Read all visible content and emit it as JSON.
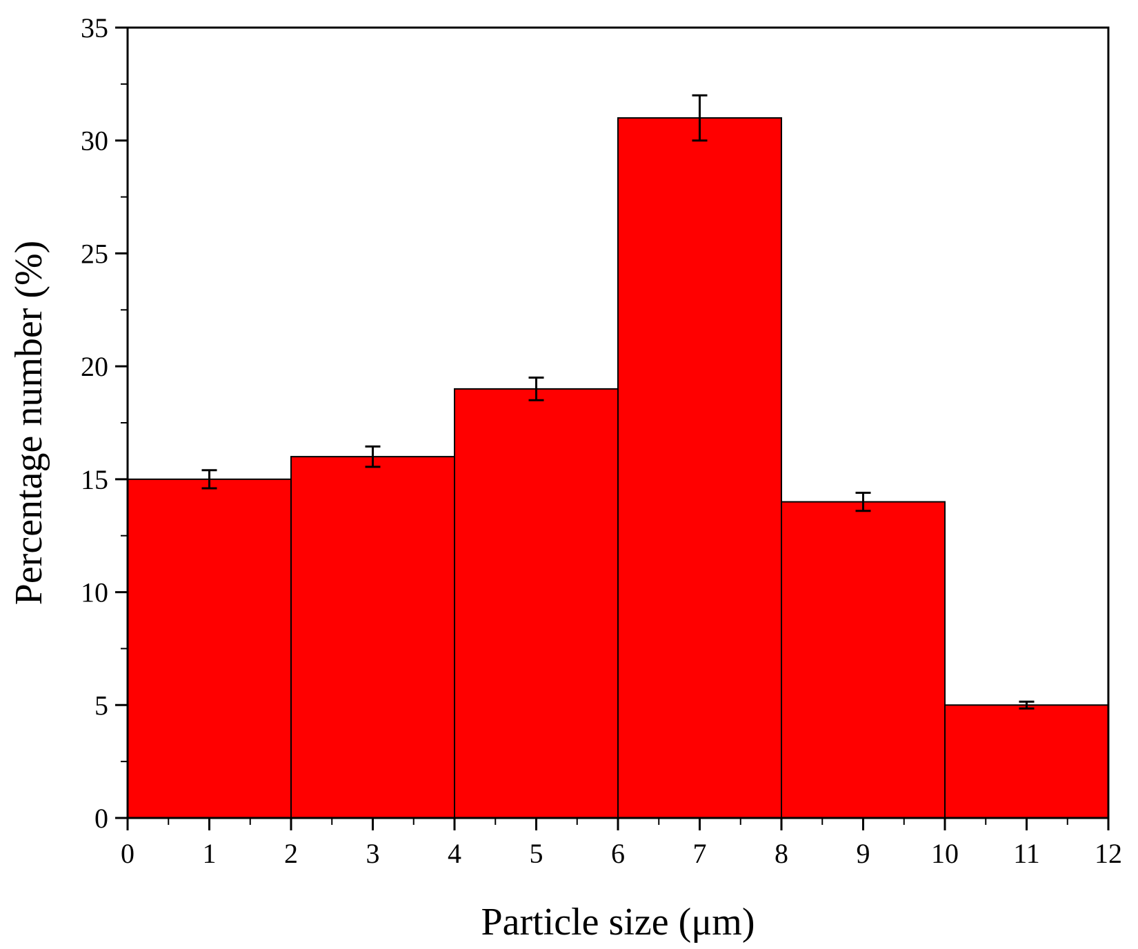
{
  "chart_data": {
    "type": "bar",
    "subtype": "histogram",
    "title": "",
    "xlabel": "Particle size (μm)",
    "ylabel": "Percentage number  (%)",
    "xlim": [
      0,
      12
    ],
    "ylim": [
      0,
      35
    ],
    "x_ticks": [
      "0",
      "1",
      "2",
      "3",
      "4",
      "5",
      "6",
      "7",
      "8",
      "9",
      "10",
      "11",
      "12"
    ],
    "y_ticks": [
      "0",
      "5",
      "10",
      "15",
      "20",
      "25",
      "30",
      "35"
    ],
    "bins": [
      {
        "start": 0,
        "end": 2,
        "center": 1,
        "value": 15,
        "error": 0.4
      },
      {
        "start": 2,
        "end": 4,
        "center": 3,
        "value": 16,
        "error": 0.45
      },
      {
        "start": 4,
        "end": 6,
        "center": 5,
        "value": 19,
        "error": 0.5
      },
      {
        "start": 6,
        "end": 8,
        "center": 7,
        "value": 31,
        "error": 1.0
      },
      {
        "start": 8,
        "end": 10,
        "center": 9,
        "value": 14,
        "error": 0.4
      },
      {
        "start": 10,
        "end": 12,
        "center": 11,
        "value": 5,
        "error": 0.15
      }
    ],
    "bar_color": "#ff0000",
    "edge_color": "#000000",
    "grid": false,
    "legend": "none"
  }
}
